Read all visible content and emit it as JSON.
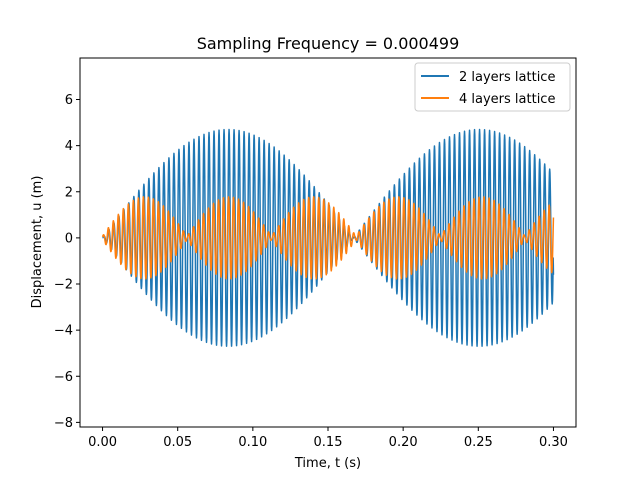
{
  "chart_data": {
    "type": "line",
    "title": "Sampling Frequency = 0.000499",
    "xlabel": "Time, t (s)",
    "ylabel": "Displacement, u (m)",
    "xlim": [
      -0.015,
      0.315
    ],
    "ylim": [
      -8.2,
      7.8
    ],
    "xticks": [
      0.0,
      0.05,
      0.1,
      0.15,
      0.2,
      0.25,
      0.3
    ],
    "xtick_labels": [
      "0.00",
      "0.05",
      "0.10",
      "0.15",
      "0.20",
      "0.25",
      "0.30"
    ],
    "yticks": [
      -8,
      -6,
      -4,
      -2,
      0,
      2,
      4,
      6
    ],
    "ytick_labels": [
      "−8",
      "−6",
      "−4",
      "−2",
      "0",
      "2",
      "4",
      "6"
    ],
    "grid": false,
    "legend_position": "top-right",
    "series": [
      {
        "name": "2 layers lattice",
        "color": "#1f77b4",
        "x_range": [
          0.0,
          0.3
        ],
        "carrier_frequency_hz": 300,
        "envelope_amplitude": 4.7,
        "envelope_peaks_at": [
          0.083,
          0.25
        ],
        "envelope_zero_at": [
          0.0,
          0.167
        ],
        "end_value": -1.6
      },
      {
        "name": "4 layers lattice",
        "color": "#ff7f0e",
        "x_range": [
          0.0,
          0.3
        ],
        "carrier_frequency_hz": 300,
        "envelope_amplitude": 1.7,
        "envelope_peaks_at": [
          0.03,
          0.085,
          0.14,
          0.197,
          0.252
        ],
        "envelope_zero_at": [
          0.0,
          0.057,
          0.113,
          0.168,
          0.224,
          0.28
        ]
      }
    ]
  }
}
